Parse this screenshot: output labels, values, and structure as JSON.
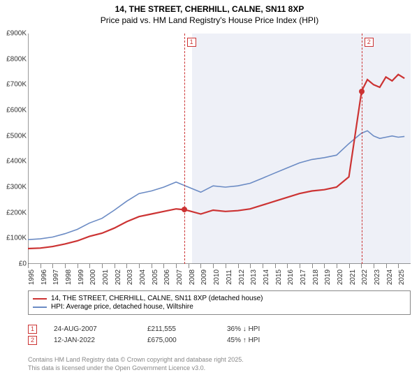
{
  "title_line1": "14, THE STREET, CHERHILL, CALNE, SN11 8XP",
  "title_line2": "Price paid vs. HM Land Registry's House Price Index (HPI)",
  "chart": {
    "type": "line",
    "background_color": "#ffffff",
    "shade_color": "#eef0f7",
    "x_range_years": [
      1995,
      2026
    ],
    "x_ticks": [
      1995,
      1996,
      1997,
      1998,
      1999,
      2000,
      2001,
      2002,
      2003,
      2004,
      2005,
      2006,
      2007,
      2008,
      2009,
      2010,
      2011,
      2012,
      2013,
      2014,
      2015,
      2016,
      2017,
      2018,
      2019,
      2020,
      2021,
      2022,
      2023,
      2024,
      2025
    ],
    "ylim": [
      0,
      900
    ],
    "ytick_step": 100,
    "y_unit_suffix": "K",
    "y_prefix": "£",
    "series_red": {
      "label": "14, THE STREET, CHERHILL, CALNE, SN11 8XP (detached house)",
      "color": "#cc3333",
      "width": 2.2,
      "points": [
        [
          1995,
          60
        ],
        [
          1996,
          62
        ],
        [
          1997,
          68
        ],
        [
          1998,
          78
        ],
        [
          1999,
          90
        ],
        [
          2000,
          108
        ],
        [
          2001,
          120
        ],
        [
          2002,
          140
        ],
        [
          2003,
          165
        ],
        [
          2004,
          185
        ],
        [
          2005,
          195
        ],
        [
          2006,
          205
        ],
        [
          2007,
          215
        ],
        [
          2007.65,
          211.555
        ],
        [
          2008,
          208
        ],
        [
          2009,
          195
        ],
        [
          2010,
          210
        ],
        [
          2011,
          205
        ],
        [
          2012,
          208
        ],
        [
          2013,
          215
        ],
        [
          2014,
          230
        ],
        [
          2015,
          245
        ],
        [
          2016,
          260
        ],
        [
          2017,
          275
        ],
        [
          2018,
          285
        ],
        [
          2019,
          290
        ],
        [
          2020,
          300
        ],
        [
          2021,
          340
        ],
        [
          2022.03,
          675
        ],
        [
          2022.5,
          720
        ],
        [
          2023,
          700
        ],
        [
          2023.5,
          690
        ],
        [
          2024,
          730
        ],
        [
          2024.5,
          715
        ],
        [
          2025,
          740
        ],
        [
          2025.5,
          725
        ]
      ]
    },
    "series_blue": {
      "label": "HPI: Average price, detached house, Wiltshire",
      "color": "#6b8bc4",
      "width": 1.6,
      "points": [
        [
          1995,
          95
        ],
        [
          1996,
          98
        ],
        [
          1997,
          105
        ],
        [
          1998,
          118
        ],
        [
          1999,
          135
        ],
        [
          2000,
          160
        ],
        [
          2001,
          178
        ],
        [
          2002,
          210
        ],
        [
          2003,
          245
        ],
        [
          2004,
          275
        ],
        [
          2005,
          285
        ],
        [
          2006,
          300
        ],
        [
          2007,
          320
        ],
        [
          2008,
          300
        ],
        [
          2009,
          280
        ],
        [
          2010,
          305
        ],
        [
          2011,
          300
        ],
        [
          2012,
          305
        ],
        [
          2013,
          315
        ],
        [
          2014,
          335
        ],
        [
          2015,
          355
        ],
        [
          2016,
          375
        ],
        [
          2017,
          395
        ],
        [
          2018,
          408
        ],
        [
          2019,
          415
        ],
        [
          2020,
          425
        ],
        [
          2021,
          470
        ],
        [
          2022,
          510
        ],
        [
          2022.5,
          520
        ],
        [
          2023,
          500
        ],
        [
          2023.5,
          490
        ],
        [
          2024,
          495
        ],
        [
          2024.5,
          500
        ],
        [
          2025,
          495
        ],
        [
          2025.5,
          498
        ]
      ]
    },
    "shaded_from_year": 2008.3,
    "markers": [
      {
        "n": 1,
        "year": 2007.65,
        "value": 211.555,
        "date": "24-AUG-2007",
        "price": "£211,555",
        "delta": "36% ↓ HPI"
      },
      {
        "n": 2,
        "year": 2022.03,
        "value": 675,
        "date": "12-JAN-2022",
        "price": "£675,000",
        "delta": "45% ↑ HPI"
      }
    ]
  },
  "copyright_line1": "Contains HM Land Registry data © Crown copyright and database right 2025.",
  "copyright_line2": "This data is licensed under the Open Government Licence v3.0."
}
